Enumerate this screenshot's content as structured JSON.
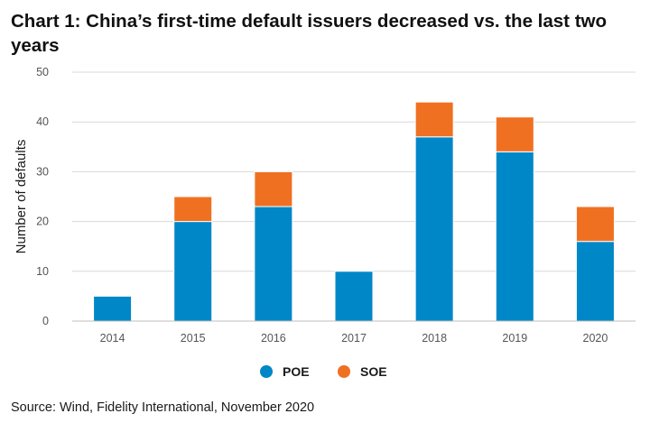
{
  "title": "Chart 1: China’s first-time default issuers decreased vs. the last two years",
  "source": "Source: Wind, Fidelity International, November 2020",
  "colors": {
    "POE": "#0087c8",
    "SOE": "#f07022"
  },
  "chart_data": {
    "type": "bar",
    "stacked": true,
    "title": "Chart 1: China’s first-time default issuers decreased vs. the last two years",
    "xlabel": "",
    "ylabel": "Number of defaults",
    "ylim": [
      0,
      50
    ],
    "yticks": [
      0,
      10,
      20,
      30,
      40,
      50
    ],
    "grid": true,
    "legend_position": "bottom",
    "categories": [
      "2014",
      "2015",
      "2016",
      "2017",
      "2018",
      "2019",
      "2020"
    ],
    "series": [
      {
        "name": "POE",
        "values": [
          5,
          20,
          23,
          10,
          37,
          34,
          16
        ]
      },
      {
        "name": "SOE",
        "values": [
          0,
          5,
          7,
          0,
          7,
          7,
          7
        ]
      }
    ]
  }
}
